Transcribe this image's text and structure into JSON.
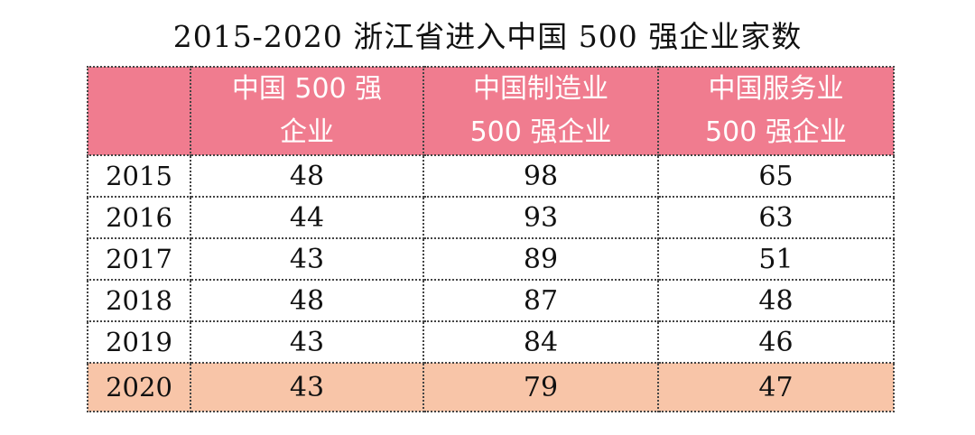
{
  "title": "2015-2020 浙江省进入中国 500 强企业家数",
  "table": {
    "headers": [
      {
        "lines": [
          "",
          ""
        ]
      },
      {
        "lines": [
          "中国 500 强",
          "企业"
        ]
      },
      {
        "lines": [
          "中国制造业",
          "500 强企业"
        ]
      },
      {
        "lines": [
          "中国服务业",
          "500 强企业"
        ]
      }
    ],
    "rows": [
      {
        "year": "2015",
        "c1": "48",
        "c2": "98",
        "c3": "65"
      },
      {
        "year": "2016",
        "c1": "44",
        "c2": "93",
        "c3": "63"
      },
      {
        "year": "2017",
        "c1": "43",
        "c2": "89",
        "c3": "51"
      },
      {
        "year": "2018",
        "c1": "48",
        "c2": "87",
        "c3": "48"
      },
      {
        "year": "2019",
        "c1": "43",
        "c2": "84",
        "c3": "46"
      },
      {
        "year": "2020",
        "c1": "43",
        "c2": "79",
        "c3": "47"
      }
    ]
  },
  "colors": {
    "header_bg": "#f07c8f",
    "highlight_row_bg": "#f8c5a8"
  }
}
